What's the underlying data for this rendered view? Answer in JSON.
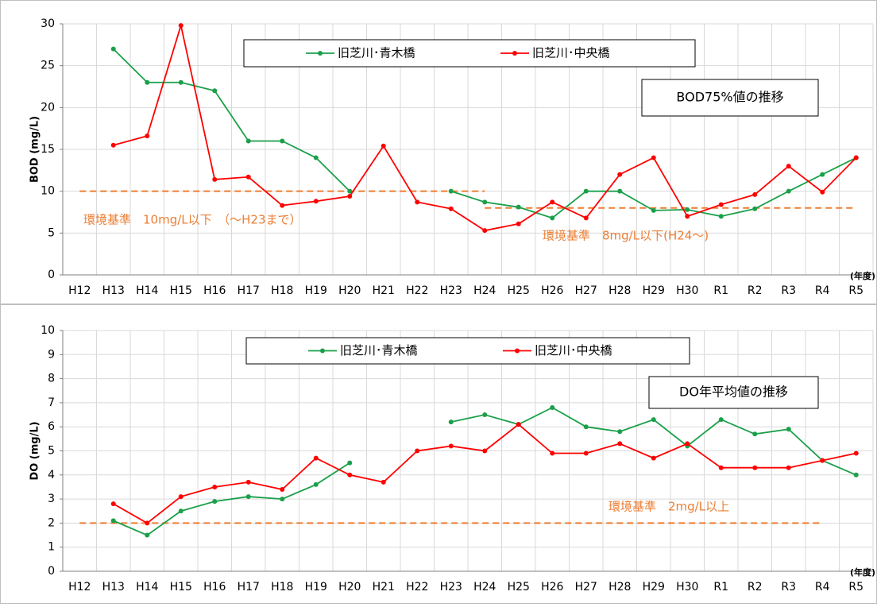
{
  "chart_data": [
    {
      "type": "line",
      "title": "BOD75%値の推移",
      "y_label": "BOD (mg/L)",
      "x_unit_label": "(年度)",
      "categories": [
        "H12",
        "H13",
        "H14",
        "H15",
        "H16",
        "H17",
        "H18",
        "H19",
        "H20",
        "H21",
        "H22",
        "H23",
        "H24",
        "H25",
        "H26",
        "H27",
        "H28",
        "H29",
        "H30",
        "R1",
        "R2",
        "R3",
        "R4",
        "R5"
      ],
      "series": [
        {
          "name": "旧芝川･青木橋",
          "color": "#1aa04a",
          "values": [
            null,
            27,
            23,
            23,
            22,
            16,
            16,
            14,
            10,
            null,
            null,
            10,
            8.7,
            8.1,
            6.8,
            10,
            10,
            7.7,
            7.8,
            7.0,
            7.9,
            10,
            12,
            14
          ]
        },
        {
          "name": "旧芝川･中央橋",
          "color": "#ff0000",
          "values": [
            null,
            15.5,
            16.6,
            29.8,
            11.4,
            11.7,
            8.3,
            8.8,
            9.4,
            15.4,
            8.7,
            7.9,
            5.3,
            6.1,
            8.7,
            6.8,
            12,
            14,
            7.0,
            8.4,
            9.6,
            13,
            9.9,
            14
          ]
        }
      ],
      "ylim": [
        0,
        30
      ],
      "yticks": [
        0,
        5,
        10,
        15,
        20,
        25,
        30
      ],
      "grid": true,
      "reference_lines": [
        {
          "value": 10,
          "start": "H12",
          "end": "H24",
          "label": "環境基準　10mg/L以下　（～H23まで）",
          "color": "#ed7d31"
        },
        {
          "value": 8,
          "start": "H24",
          "end": "R5",
          "label": "環境基準　8mg/L以下(H24～)",
          "color": "#ed7d31"
        }
      ]
    },
    {
      "type": "line",
      "title": "DO年平均値の推移",
      "y_label": "DO (mg/L)",
      "x_unit_label": "(年度)",
      "categories": [
        "H12",
        "H13",
        "H14",
        "H15",
        "H16",
        "H17",
        "H18",
        "H19",
        "H20",
        "H21",
        "H22",
        "H23",
        "H24",
        "H25",
        "H26",
        "H27",
        "H28",
        "H29",
        "H30",
        "R1",
        "R2",
        "R3",
        "R4",
        "R5"
      ],
      "series": [
        {
          "name": "旧芝川･青木橋",
          "color": "#1aa04a",
          "values": [
            null,
            2.1,
            1.5,
            2.5,
            2.9,
            3.1,
            3.0,
            3.6,
            4.5,
            null,
            null,
            6.2,
            6.5,
            6.1,
            6.8,
            6.0,
            5.8,
            6.3,
            5.2,
            6.3,
            5.7,
            5.9,
            4.6,
            4.0
          ]
        },
        {
          "name": "旧芝川･中央橋",
          "color": "#ff0000",
          "values": [
            null,
            2.8,
            2.0,
            3.1,
            3.5,
            3.7,
            3.4,
            4.7,
            4.0,
            3.7,
            5.0,
            5.2,
            5.0,
            6.1,
            4.9,
            4.9,
            5.3,
            4.7,
            5.3,
            4.3,
            4.3,
            4.3,
            4.6,
            4.9
          ]
        }
      ],
      "ylim": [
        0,
        10
      ],
      "yticks": [
        0,
        1,
        2,
        3,
        4,
        5,
        6,
        7,
        8,
        9,
        10
      ],
      "grid": true,
      "reference_lines": [
        {
          "value": 2,
          "start": "H12",
          "end": "R4",
          "label": "環境基準　2mg/L以上",
          "color": "#ed7d31"
        }
      ]
    }
  ]
}
